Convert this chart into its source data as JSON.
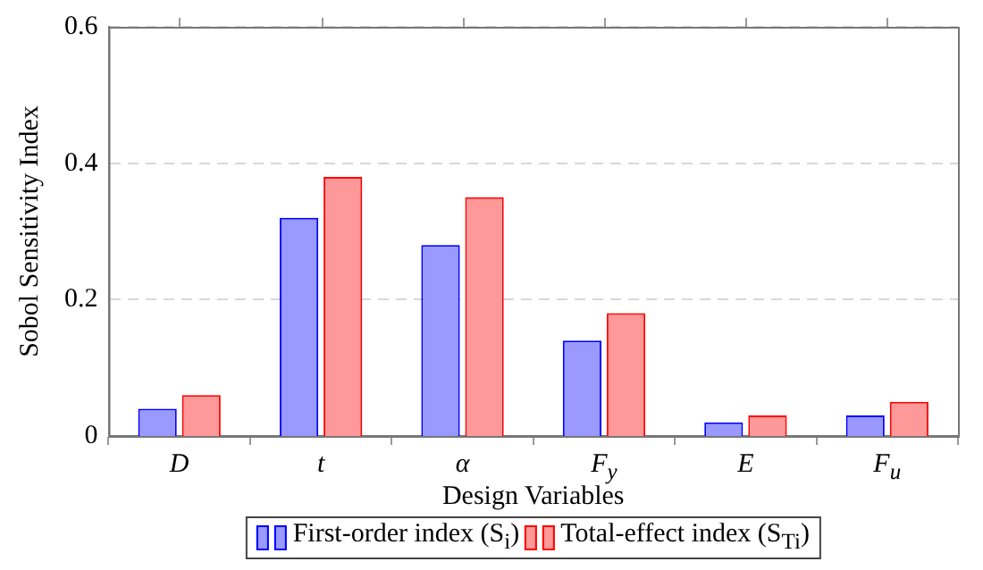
{
  "chart_data": {
    "type": "bar",
    "xlabel": "Design Variables",
    "ylabel": "Sobol Sensitivity Index",
    "categories": [
      "D",
      "t",
      "α",
      "F$_{y}$",
      "E",
      "F$_{u}$"
    ],
    "series": [
      {
        "name": "First-order index (S$_{i}$)",
        "color": "#9999ff",
        "values": [
          0.04,
          0.32,
          0.28,
          0.14,
          0.02,
          0.03
        ]
      },
      {
        "name": "Total-effect index (S$_{Ti}$)",
        "color": "#ff9999",
        "values": [
          0.06,
          0.38,
          0.35,
          0.18,
          0.03,
          0.05
        ]
      }
    ],
    "ylim": [
      0,
      0.6
    ],
    "yticks": [
      0,
      0.2,
      0.4,
      0.6
    ],
    "grid": "y",
    "legend": "bottom"
  }
}
